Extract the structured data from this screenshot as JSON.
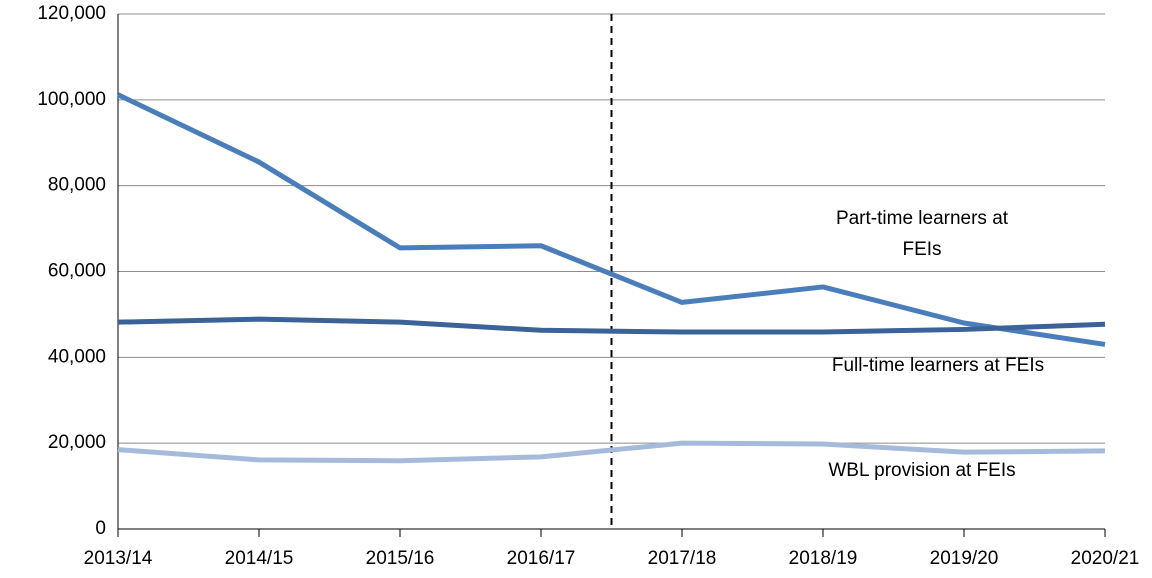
{
  "chart_data": {
    "type": "line",
    "categories": [
      "2013/14",
      "2014/15",
      "2015/16",
      "2016/17",
      "2017/18",
      "2018/19",
      "2019/20",
      "2020/21"
    ],
    "series": [
      {
        "name": "Part-time learners at FEIs",
        "color": "#4a7ebb",
        "values": [
          101200,
          85500,
          65500,
          66000,
          52800,
          56400,
          48000,
          43000
        ]
      },
      {
        "name": "Full-time learners at FEIs",
        "color": "#3b6397",
        "values": [
          48200,
          48900,
          48200,
          46300,
          45900,
          45900,
          46500,
          47700
        ]
      },
      {
        "name": "WBL provision at FEIs",
        "color": "#a6bbdb",
        "values": [
          18500,
          16100,
          15900,
          16800,
          20000,
          19800,
          17900,
          18200
        ]
      }
    ],
    "ylim": [
      0,
      120000
    ],
    "yticks": [
      0,
      {
        "value": 20000,
        "label": "20,000"
      },
      {
        "value": 40000,
        "label": "40,000"
      },
      {
        "value": 60000,
        "label": "60,000"
      },
      {
        "value": 80000,
        "label": "80,000"
      },
      {
        "value": 100000,
        "label": "100,000"
      },
      {
        "value": 120000,
        "label": "120,000"
      }
    ],
    "grid": true,
    "reference_line": {
      "x": 3.5,
      "style": "dashed"
    }
  }
}
